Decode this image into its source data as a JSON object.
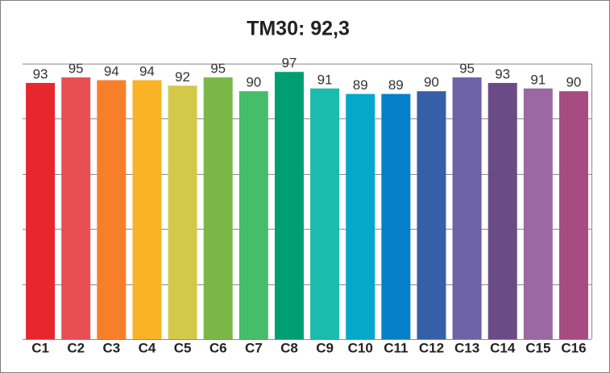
{
  "chart_data": {
    "type": "bar",
    "title": "TM30: 92,3",
    "categories": [
      "C1",
      "C2",
      "C3",
      "C4",
      "C5",
      "C6",
      "C7",
      "C8",
      "C9",
      "C10",
      "C11",
      "C12",
      "C13",
      "C14",
      "C15",
      "C16"
    ],
    "values": [
      93,
      95,
      94,
      94,
      92,
      95,
      90,
      97,
      91,
      89,
      89,
      90,
      95,
      93,
      91,
      90
    ],
    "colors": [
      "#e8262d",
      "#e84f53",
      "#f77f2a",
      "#fbb326",
      "#d2c94a",
      "#7ab648",
      "#45bd6b",
      "#009e73",
      "#1bbcad",
      "#04a8c8",
      "#0580c8",
      "#3560a8",
      "#6e62a8",
      "#6a4b86",
      "#9b68a4",
      "#a64c80"
    ],
    "ylim": [
      0,
      100
    ],
    "yticks": [
      0,
      20,
      40,
      60,
      80,
      100
    ],
    "grid": true
  }
}
